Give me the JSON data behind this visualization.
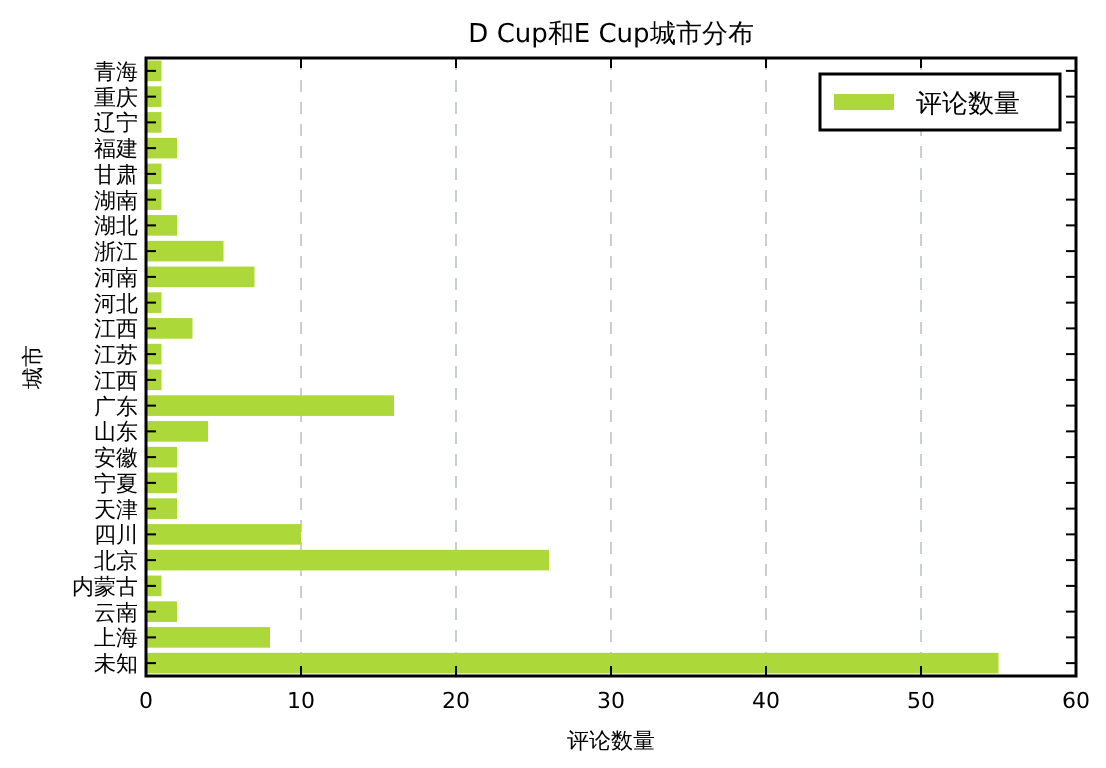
{
  "chart_data": {
    "type": "bar",
    "orientation": "horizontal",
    "title": "D Cup和E Cup城市分布",
    "xlabel": "评论数量",
    "ylabel": "城市",
    "categories": [
      "青海",
      "重庆",
      "辽宁",
      "福建",
      "甘肃",
      "湖南",
      "湖北",
      "浙江",
      "河南",
      "河北",
      "江西",
      "江苏",
      "江西",
      "广东",
      "山东",
      "安徽",
      "宁夏",
      "天津",
      "四川",
      "北京",
      "内蒙古",
      "云南",
      "上海",
      "未知"
    ],
    "series": [
      {
        "name": "评论数量",
        "color": "#add83a",
        "values": [
          1,
          1,
          1,
          2,
          1,
          1,
          2,
          5,
          7,
          1,
          3,
          1,
          1,
          16,
          4,
          2,
          2,
          2,
          10,
          26,
          1,
          2,
          8,
          55
        ]
      }
    ],
    "xlim": [
      0,
      60
    ],
    "xticks": [
      0,
      10,
      20,
      30,
      40,
      50,
      60
    ],
    "grid": "x",
    "legend": "top right"
  }
}
